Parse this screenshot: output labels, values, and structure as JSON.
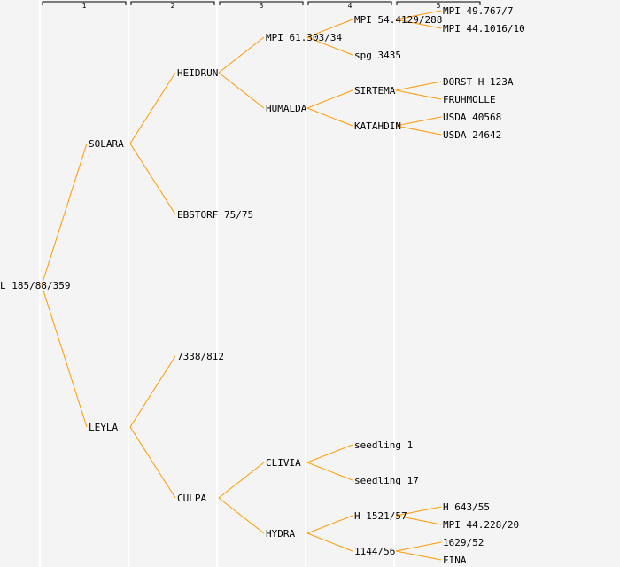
{
  "generations": [
    "1",
    "2",
    "3",
    "4",
    "5"
  ],
  "colors": {
    "line": "#ff9900",
    "text": "#000000",
    "background": "#f4f4f4",
    "separator": "#ffffff",
    "bracket": "#000000"
  },
  "pedigree": {
    "name": "L 185/88/359",
    "children": [
      {
        "name": "SOLARA",
        "children": [
          {
            "name": "HEIDRUN",
            "children": [
              {
                "name": "MPI 61.303/34",
                "children": [
                  {
                    "name": "MPI 54.4129/288",
                    "children": [
                      {
                        "name": "MPI 49.767/7"
                      },
                      {
                        "name": "MPI 44.1016/10"
                      }
                    ]
                  },
                  {
                    "name": "spg 3435"
                  }
                ]
              },
              {
                "name": "HUMALDA",
                "children": [
                  {
                    "name": "SIRTEMA",
                    "children": [
                      {
                        "name": "DORST H 123A"
                      },
                      {
                        "name": "FRUHMOLLE"
                      }
                    ]
                  },
                  {
                    "name": "KATAHDIN",
                    "children": [
                      {
                        "name": "USDA 40568"
                      },
                      {
                        "name": "USDA 24642"
                      }
                    ]
                  }
                ]
              }
            ]
          },
          {
            "name": "EBSTORF 75/75"
          }
        ]
      },
      {
        "name": "LEYLA",
        "children": [
          {
            "name": "7338/812"
          },
          {
            "name": "CULPA",
            "children": [
              {
                "name": "CLIVIA",
                "children": [
                  {
                    "name": "seedling 1"
                  },
                  {
                    "name": "seedling 17"
                  }
                ]
              },
              {
                "name": "HYDRA",
                "children": [
                  {
                    "name": "H 1521/57",
                    "children": [
                      {
                        "name": "H 643/55"
                      },
                      {
                        "name": "MPI 44.228/20"
                      }
                    ]
                  },
                  {
                    "name": "1144/56",
                    "children": [
                      {
                        "name": "1629/52"
                      },
                      {
                        "name": "FINA"
                      }
                    ]
                  }
                ]
              }
            ]
          }
        ]
      }
    ]
  }
}
